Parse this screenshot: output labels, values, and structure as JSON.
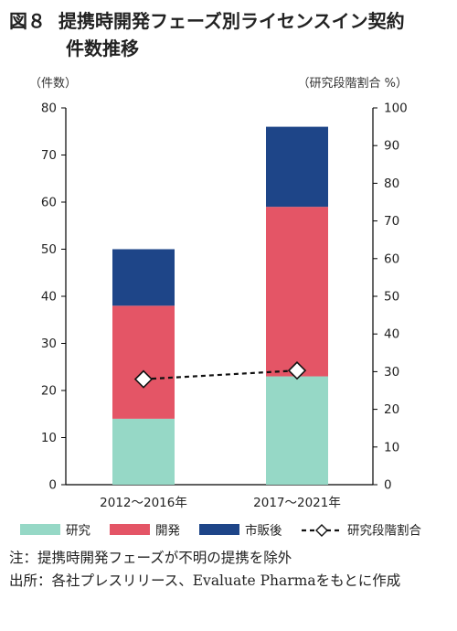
{
  "title": {
    "figure_no": "図８",
    "line1": "提携時開発フェーズ別ライセンスイン契約",
    "line2": "件数推移"
  },
  "chart_data": {
    "type": "bar",
    "stacked": true,
    "categories": [
      "2012～2016年",
      "2017～2021年"
    ],
    "series": [
      {
        "name": "研究",
        "values": [
          14,
          23
        ],
        "color": "#96d8c6"
      },
      {
        "name": "開発",
        "values": [
          24,
          36
        ],
        "color": "#e45566"
      },
      {
        "name": "市販後",
        "values": [
          12,
          17
        ],
        "color": "#1e4588"
      }
    ],
    "line_series": {
      "name": "研究段階割合",
      "axis": "right",
      "values": [
        28,
        30.3
      ],
      "color": "#111111",
      "marker": "diamond",
      "style": "dashed"
    },
    "left_axis": {
      "label": "（件数）",
      "ylim": [
        0,
        80
      ],
      "ticks": [
        0,
        10,
        20,
        30,
        40,
        50,
        60,
        70,
        80
      ]
    },
    "right_axis": {
      "label": "（研究段階割合 %）",
      "ylim": [
        0,
        100
      ],
      "ticks": [
        0,
        10,
        20,
        30,
        40,
        50,
        60,
        70,
        80,
        90,
        100
      ]
    },
    "grid": false,
    "legend_position": "bottom"
  },
  "notes": [
    {
      "label": "注：",
      "text": "提携時開発フェーズが不明の提携を除外"
    },
    {
      "label": "出所：",
      "text": "各社プレスリリース、Evaluate Pharmaをもとに作成"
    }
  ]
}
